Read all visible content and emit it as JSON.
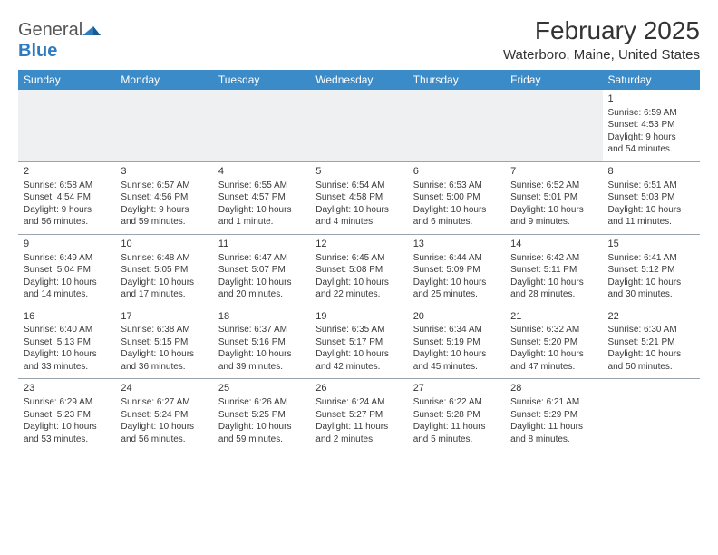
{
  "logo": {
    "text_a": "General",
    "text_b": "Blue"
  },
  "title": "February 2025",
  "subtitle": "Waterboro, Maine, United States",
  "colors": {
    "header_bg": "#3b8bc8",
    "header_fg": "#ffffff",
    "row_border": "#9aa4ad",
    "empty_bg": "#eef0f1",
    "text": "#333333",
    "logo_blue": "#2f7bbf"
  },
  "weekdays": [
    "Sunday",
    "Monday",
    "Tuesday",
    "Wednesday",
    "Thursday",
    "Friday",
    "Saturday"
  ],
  "weeks": [
    [
      null,
      null,
      null,
      null,
      null,
      null,
      {
        "n": "1",
        "sr": "Sunrise: 6:59 AM",
        "ss": "Sunset: 4:53 PM",
        "d1": "Daylight: 9 hours",
        "d2": "and 54 minutes."
      }
    ],
    [
      {
        "n": "2",
        "sr": "Sunrise: 6:58 AM",
        "ss": "Sunset: 4:54 PM",
        "d1": "Daylight: 9 hours",
        "d2": "and 56 minutes."
      },
      {
        "n": "3",
        "sr": "Sunrise: 6:57 AM",
        "ss": "Sunset: 4:56 PM",
        "d1": "Daylight: 9 hours",
        "d2": "and 59 minutes."
      },
      {
        "n": "4",
        "sr": "Sunrise: 6:55 AM",
        "ss": "Sunset: 4:57 PM",
        "d1": "Daylight: 10 hours",
        "d2": "and 1 minute."
      },
      {
        "n": "5",
        "sr": "Sunrise: 6:54 AM",
        "ss": "Sunset: 4:58 PM",
        "d1": "Daylight: 10 hours",
        "d2": "and 4 minutes."
      },
      {
        "n": "6",
        "sr": "Sunrise: 6:53 AM",
        "ss": "Sunset: 5:00 PM",
        "d1": "Daylight: 10 hours",
        "d2": "and 6 minutes."
      },
      {
        "n": "7",
        "sr": "Sunrise: 6:52 AM",
        "ss": "Sunset: 5:01 PM",
        "d1": "Daylight: 10 hours",
        "d2": "and 9 minutes."
      },
      {
        "n": "8",
        "sr": "Sunrise: 6:51 AM",
        "ss": "Sunset: 5:03 PM",
        "d1": "Daylight: 10 hours",
        "d2": "and 11 minutes."
      }
    ],
    [
      {
        "n": "9",
        "sr": "Sunrise: 6:49 AM",
        "ss": "Sunset: 5:04 PM",
        "d1": "Daylight: 10 hours",
        "d2": "and 14 minutes."
      },
      {
        "n": "10",
        "sr": "Sunrise: 6:48 AM",
        "ss": "Sunset: 5:05 PM",
        "d1": "Daylight: 10 hours",
        "d2": "and 17 minutes."
      },
      {
        "n": "11",
        "sr": "Sunrise: 6:47 AM",
        "ss": "Sunset: 5:07 PM",
        "d1": "Daylight: 10 hours",
        "d2": "and 20 minutes."
      },
      {
        "n": "12",
        "sr": "Sunrise: 6:45 AM",
        "ss": "Sunset: 5:08 PM",
        "d1": "Daylight: 10 hours",
        "d2": "and 22 minutes."
      },
      {
        "n": "13",
        "sr": "Sunrise: 6:44 AM",
        "ss": "Sunset: 5:09 PM",
        "d1": "Daylight: 10 hours",
        "d2": "and 25 minutes."
      },
      {
        "n": "14",
        "sr": "Sunrise: 6:42 AM",
        "ss": "Sunset: 5:11 PM",
        "d1": "Daylight: 10 hours",
        "d2": "and 28 minutes."
      },
      {
        "n": "15",
        "sr": "Sunrise: 6:41 AM",
        "ss": "Sunset: 5:12 PM",
        "d1": "Daylight: 10 hours",
        "d2": "and 30 minutes."
      }
    ],
    [
      {
        "n": "16",
        "sr": "Sunrise: 6:40 AM",
        "ss": "Sunset: 5:13 PM",
        "d1": "Daylight: 10 hours",
        "d2": "and 33 minutes."
      },
      {
        "n": "17",
        "sr": "Sunrise: 6:38 AM",
        "ss": "Sunset: 5:15 PM",
        "d1": "Daylight: 10 hours",
        "d2": "and 36 minutes."
      },
      {
        "n": "18",
        "sr": "Sunrise: 6:37 AM",
        "ss": "Sunset: 5:16 PM",
        "d1": "Daylight: 10 hours",
        "d2": "and 39 minutes."
      },
      {
        "n": "19",
        "sr": "Sunrise: 6:35 AM",
        "ss": "Sunset: 5:17 PM",
        "d1": "Daylight: 10 hours",
        "d2": "and 42 minutes."
      },
      {
        "n": "20",
        "sr": "Sunrise: 6:34 AM",
        "ss": "Sunset: 5:19 PM",
        "d1": "Daylight: 10 hours",
        "d2": "and 45 minutes."
      },
      {
        "n": "21",
        "sr": "Sunrise: 6:32 AM",
        "ss": "Sunset: 5:20 PM",
        "d1": "Daylight: 10 hours",
        "d2": "and 47 minutes."
      },
      {
        "n": "22",
        "sr": "Sunrise: 6:30 AM",
        "ss": "Sunset: 5:21 PM",
        "d1": "Daylight: 10 hours",
        "d2": "and 50 minutes."
      }
    ],
    [
      {
        "n": "23",
        "sr": "Sunrise: 6:29 AM",
        "ss": "Sunset: 5:23 PM",
        "d1": "Daylight: 10 hours",
        "d2": "and 53 minutes."
      },
      {
        "n": "24",
        "sr": "Sunrise: 6:27 AM",
        "ss": "Sunset: 5:24 PM",
        "d1": "Daylight: 10 hours",
        "d2": "and 56 minutes."
      },
      {
        "n": "25",
        "sr": "Sunrise: 6:26 AM",
        "ss": "Sunset: 5:25 PM",
        "d1": "Daylight: 10 hours",
        "d2": "and 59 minutes."
      },
      {
        "n": "26",
        "sr": "Sunrise: 6:24 AM",
        "ss": "Sunset: 5:27 PM",
        "d1": "Daylight: 11 hours",
        "d2": "and 2 minutes."
      },
      {
        "n": "27",
        "sr": "Sunrise: 6:22 AM",
        "ss": "Sunset: 5:28 PM",
        "d1": "Daylight: 11 hours",
        "d2": "and 5 minutes."
      },
      {
        "n": "28",
        "sr": "Sunrise: 6:21 AM",
        "ss": "Sunset: 5:29 PM",
        "d1": "Daylight: 11 hours",
        "d2": "and 8 minutes."
      },
      null
    ]
  ]
}
